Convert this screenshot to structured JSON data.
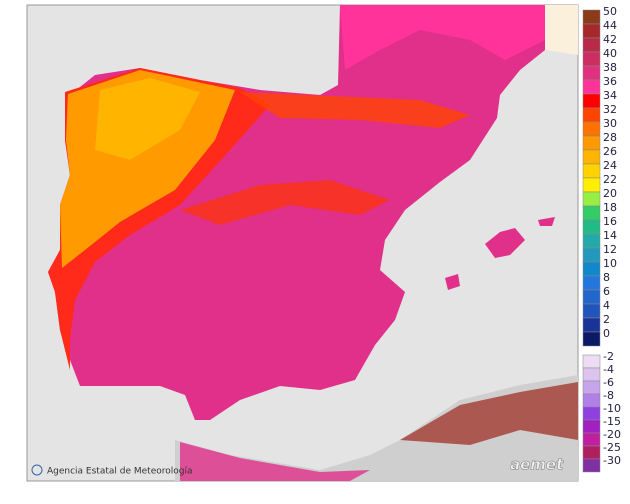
{
  "footer": {
    "agency": "Agencia Estatal de Meteorología",
    "logo": "aemet"
  },
  "legend": {
    "entries": [
      {
        "label": "50",
        "color": "#8b3a1a"
      },
      {
        "label": "44",
        "color": "#a5282a"
      },
      {
        "label": "42",
        "color": "#b82a48"
      },
      {
        "label": "40",
        "color": "#cc2e62"
      },
      {
        "label": "38",
        "color": "#e0307e"
      },
      {
        "label": "36",
        "color": "#ff3399"
      },
      {
        "label": "34",
        "color": "#ff0000"
      },
      {
        "label": "32",
        "color": "#ff4400"
      },
      {
        "label": "30",
        "color": "#ff7200"
      },
      {
        "label": "28",
        "color": "#ff9900"
      },
      {
        "label": "26",
        "color": "#ffb400"
      },
      {
        "label": "24",
        "color": "#ffd200"
      },
      {
        "label": "22",
        "color": "#ffee00"
      },
      {
        "label": "20",
        "color": "#99ee44"
      },
      {
        "label": "18",
        "color": "#33cc66"
      },
      {
        "label": "16",
        "color": "#22bb88"
      },
      {
        "label": "14",
        "color": "#22aaaa"
      },
      {
        "label": "12",
        "color": "#2299bb"
      },
      {
        "label": "10",
        "color": "#1188cc"
      },
      {
        "label": "8",
        "color": "#2277dd"
      },
      {
        "label": "6",
        "color": "#2266cc"
      },
      {
        "label": "4",
        "color": "#2255bb"
      },
      {
        "label": "2",
        "color": "#1a3399"
      },
      {
        "label": "0",
        "color": "#0a1a66"
      },
      {
        "label": "-2",
        "color": "#ecdcf4"
      },
      {
        "label": "-4",
        "color": "#dcc4ee"
      },
      {
        "label": "-6",
        "color": "#c8a4ea"
      },
      {
        "label": "-8",
        "color": "#b080e8"
      },
      {
        "label": "-10",
        "color": "#9040e0"
      },
      {
        "label": "-15",
        "color": "#a020c0"
      },
      {
        "label": "-20",
        "color": "#c020a0"
      },
      {
        "label": "-25",
        "color": "#b02060"
      },
      {
        "label": "-30",
        "color": "#8030a0"
      }
    ]
  }
}
